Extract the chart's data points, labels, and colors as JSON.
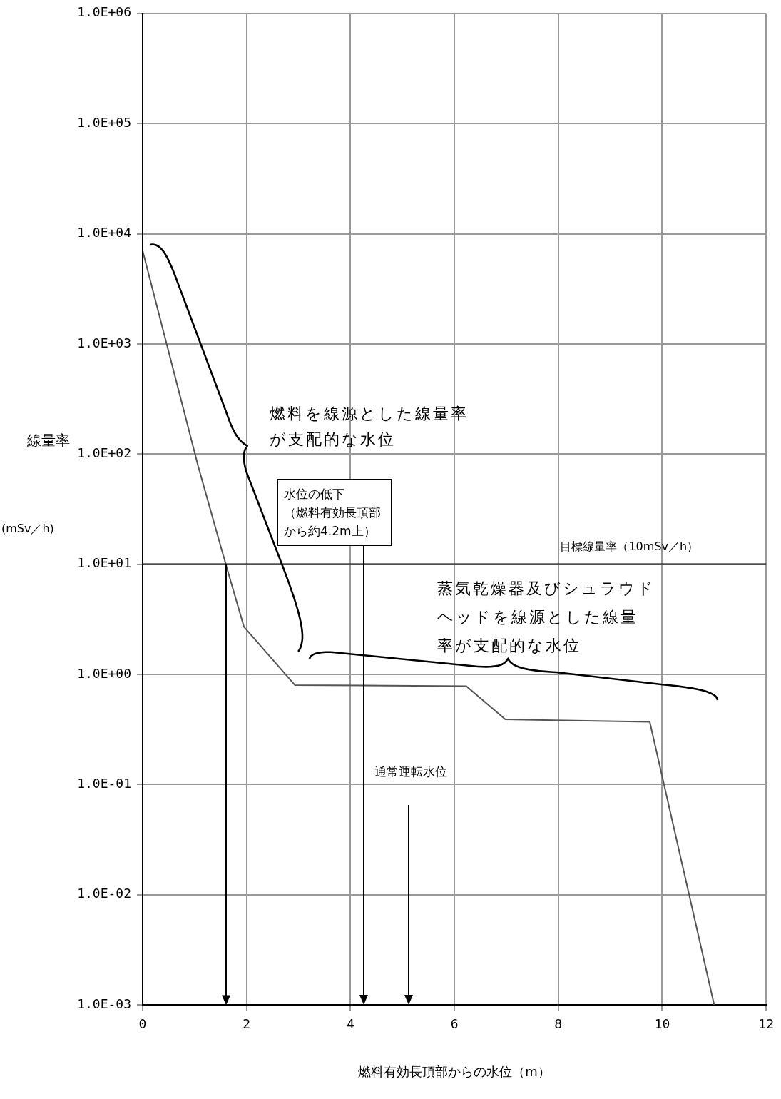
{
  "chart_data": {
    "type": "line",
    "xlabel": "燃料有効長頂部からの水位（m）",
    "ylabel": "線量率(mSv／h)",
    "x": [
      0,
      1.07,
      1.6,
      1.95,
      2.93,
      6.23,
      6.98,
      9.76,
      11.0
    ],
    "series": [
      {
        "color": "#555555",
        "values": [
          7000,
          77,
          10,
          2.7,
          0.8,
          0.78,
          0.39,
          0.37,
          0.001
        ]
      }
    ],
    "xlim": [
      0,
      12
    ],
    "xticks": [
      0,
      2,
      4,
      6,
      8,
      10,
      12
    ],
    "ylim": [
      0.001,
      1000000
    ],
    "yticks": [
      {
        "value": 0.001,
        "label": "1.0E-03"
      },
      {
        "value": 0.01,
        "label": "1.0E-02"
      },
      {
        "value": 0.1,
        "label": "1.0E-01"
      },
      {
        "value": 1,
        "label": "1.0E+00"
      },
      {
        "value": 10,
        "label": "1.0E+01"
      },
      {
        "value": 100,
        "label": "1.0E+02"
      },
      {
        "value": 1000,
        "label": "1.0E+03"
      },
      {
        "value": 10000,
        "label": "1.0E+04"
      },
      {
        "value": 100000,
        "label": "1.0E+05"
      },
      {
        "value": 1000000,
        "label": "1.0E+06"
      }
    ],
    "log": "y",
    "grid": true,
    "legend": false,
    "marker": "none",
    "line_style": "solid",
    "ref_lines": [
      {
        "axis": "y",
        "value": 10,
        "label": "目標線量率（10mSv／h）",
        "color": "#000000"
      }
    ],
    "annotations": [
      "燃料を線源とした線量率が支配的な水位",
      "蒸気乾燥器及びシュラウドヘッドを線源とした線量率が支配的な水位",
      "水位の低下（燃料有効長頂部から約4.2m上）",
      "通常運転水位"
    ]
  }
}
